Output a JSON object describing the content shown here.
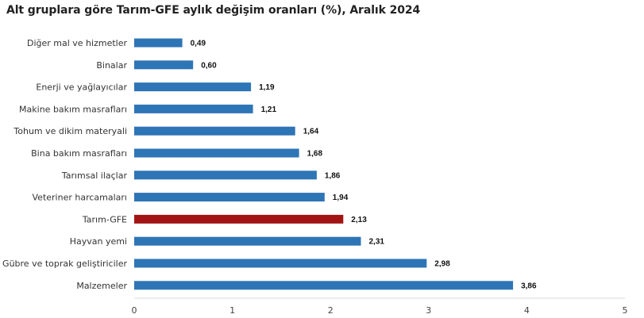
{
  "title": "Alt gruplara göre Tarım-GFE aylık değişim oranları (%), Aralık 2024",
  "chart_data": {
    "type": "bar",
    "orientation": "horizontal",
    "title": "Alt gruplara göre Tarım-GFE aylık değişim oranları (%), Aralık 2024",
    "categories": [
      "Diğer mal ve hizmetler",
      "Binalar",
      "Enerji  ve yağlayıcılar",
      "Makine bakım masrafları",
      "Tohum ve dikim materyali",
      "Bina bakım masrafları",
      "Tarımsal ilaçlar",
      "Veteriner harcamaları",
      "Tarım-GFE",
      "Hayvan yemi",
      "Gübre ve toprak geliştiriciler",
      "Malzemeler"
    ],
    "values": [
      0.49,
      0.6,
      1.19,
      1.21,
      1.64,
      1.68,
      1.86,
      1.94,
      2.13,
      2.31,
      2.98,
      3.86
    ],
    "value_labels": [
      "0,49",
      "0,60",
      "1,19",
      "1,21",
      "1,64",
      "1,68",
      "1,86",
      "1,94",
      "2,13",
      "2,31",
      "2,98",
      "3,86"
    ],
    "highlight_category": "Tarım-GFE",
    "colors": {
      "bar": "#2e75b6",
      "highlight": "#a31515",
      "axis": "#d9d9d9"
    },
    "xlim": [
      0,
      5
    ],
    "xticks": [
      "0",
      "1",
      "2",
      "3",
      "4",
      "5"
    ],
    "xlabel": "",
    "ylabel": "",
    "grid": false,
    "legend": "none"
  }
}
